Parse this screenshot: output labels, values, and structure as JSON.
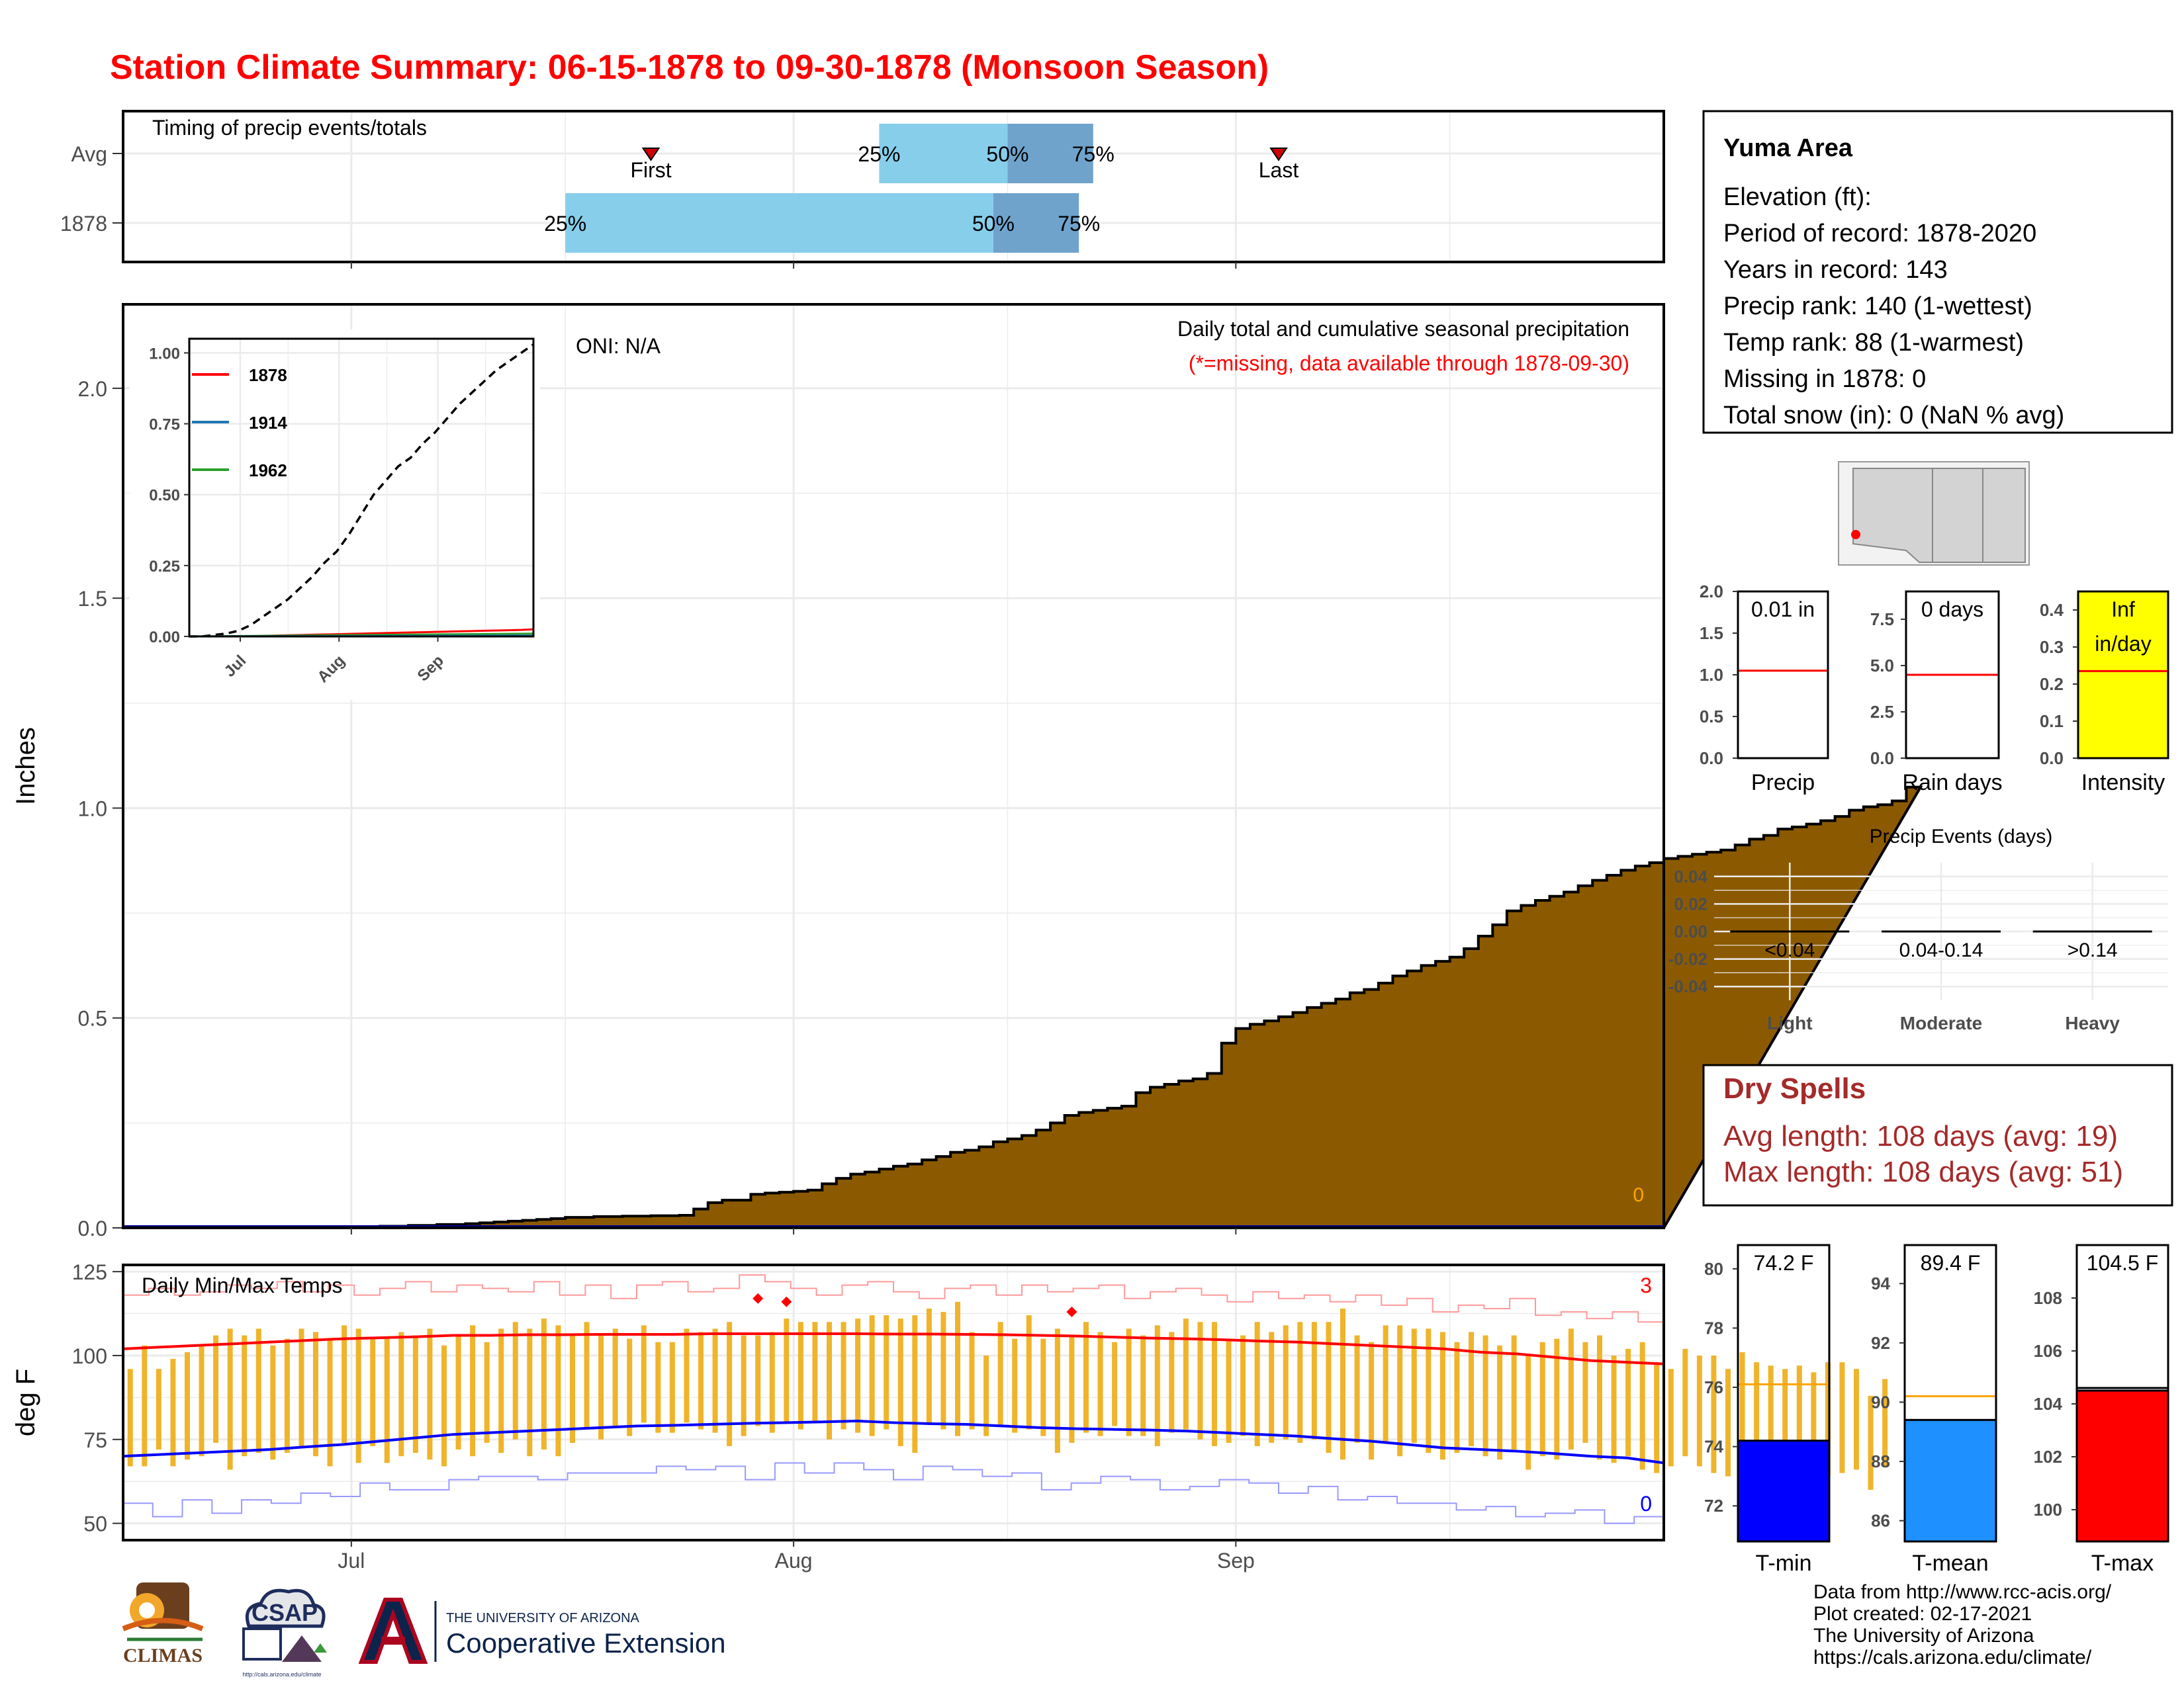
{
  "title": "Station Climate Summary: 06-15-1878 to 09-30-1878 (Monsoon Season)",
  "colors": {
    "title": "#ff0000",
    "precip_fill": "#8b5a00",
    "bar_light": "#87ceeb",
    "bar_mid": "#6fa3cc",
    "temp_bar": "#efb42b",
    "tmax_line": "#ff0000",
    "tmin_line": "#0000ff",
    "tmin_gauge": "#0000ff",
    "tmean_gauge": "#1e90ff",
    "tmax_gauge": "#ff0000",
    "intensity_bg": "#ffff00",
    "normal_line": "#ffa500",
    "dry_spell_text": "#a52a2a"
  },
  "chart_data": [
    {
      "type": "bar",
      "panel": "timing",
      "title": "Timing of precip events/totals",
      "categories": [
        "Avg",
        "1878"
      ],
      "xlim": [
        "1878-06-15",
        "1878-09-30"
      ],
      "x_ticks": [
        "1878-07-01",
        "1878-08-01",
        "1878-09-01"
      ],
      "series": [
        {
          "category": "Avg",
          "bands": [
            {
              "from": "1878-08-07",
              "to": "1878-08-16"
            },
            {
              "from": "1878-08-16",
              "to": "1878-08-22"
            }
          ],
          "labels": [
            {
              "text": "25%",
              "at": "1878-08-07"
            },
            {
              "text": "50%",
              "at": "1878-08-16"
            },
            {
              "text": "75%",
              "at": "1878-08-22"
            }
          ],
          "markers": [
            {
              "text": "First",
              "at": "1878-07-22"
            },
            {
              "text": "Last",
              "at": "1878-09-04"
            }
          ]
        },
        {
          "category": "1878",
          "bands": [
            {
              "from": "1878-07-16",
              "to": "1878-08-15"
            },
            {
              "from": "1878-08-15",
              "to": "1878-08-21"
            }
          ],
          "labels": [
            {
              "text": "25%",
              "at": "1878-07-16"
            },
            {
              "text": "50%",
              "at": "1878-08-15"
            },
            {
              "text": "75%",
              "at": "1878-08-21"
            }
          ],
          "markers": []
        }
      ]
    },
    {
      "type": "area",
      "panel": "precip",
      "title": "Daily total and cumulative seasonal precipitation",
      "subtitle": "(*=missing, data available through 1878-09-30)",
      "oni": "ONI: N/A",
      "ylabel": "Inches",
      "ylim": [
        0,
        2.2
      ],
      "yticks": [
        "0.0",
        "0.5",
        "1.0",
        "1.5",
        "2.0"
      ],
      "xlim": [
        "1878-06-15",
        "1878-09-30"
      ],
      "missing_count": "0",
      "start": "1878-06-15",
      "cumulative": [
        0,
        0,
        0,
        0,
        0,
        0,
        0,
        0,
        0,
        0,
        0,
        0,
        0,
        0,
        0,
        0,
        0.002,
        0.002,
        0.004,
        0.004,
        0.006,
        0.006,
        0.008,
        0.008,
        0.01,
        0.012,
        0.014,
        0.016,
        0.018,
        0.02,
        0.022,
        0.025,
        0.025,
        0.027,
        0.027,
        0.028,
        0.028,
        0.029,
        0.029,
        0.03,
        0.045,
        0.06,
        0.066,
        0.066,
        0.08,
        0.083,
        0.085,
        0.087,
        0.09,
        0.105,
        0.118,
        0.128,
        0.133,
        0.14,
        0.147,
        0.152,
        0.162,
        0.17,
        0.18,
        0.185,
        0.193,
        0.205,
        0.212,
        0.22,
        0.233,
        0.25,
        0.268,
        0.275,
        0.28,
        0.285,
        0.29,
        0.322,
        0.335,
        0.342,
        0.35,
        0.355,
        0.368,
        0.44,
        0.475,
        0.485,
        0.493,
        0.503,
        0.513,
        0.525,
        0.535,
        0.545,
        0.56,
        0.568,
        0.583,
        0.6,
        0.612,
        0.625,
        0.635,
        0.645,
        0.665,
        0.695,
        0.722,
        0.755,
        0.768,
        0.78,
        0.79,
        0.8,
        0.815,
        0.828,
        0.84,
        0.852,
        0.862,
        0.87,
        0.88,
        0.885,
        0.89,
        0.895,
        0.9,
        0.912,
        0.926,
        0.935,
        0.95,
        0.955,
        0.962,
        0.97,
        0.98,
        0.995,
        1.003,
        1.008,
        1.017,
        1.05
      ],
      "daily_line": 0.0
    },
    {
      "type": "line",
      "panel": "inset",
      "legend": [
        "1878",
        "1914",
        "1962"
      ],
      "legend_colors": [
        "#ff0000",
        "#1f77b4",
        "#2ca02c"
      ],
      "ylim": [
        0,
        1.05
      ],
      "yticks": [
        "0.00",
        "0.25",
        "0.50",
        "0.75",
        "1.00"
      ],
      "xlim": [
        "1878-06-15",
        "1878-09-30"
      ],
      "x_ticks": [
        "Jul",
        "Aug",
        "Sep"
      ],
      "dashed_normal": [
        0,
        0,
        0.005,
        0.01,
        0.02,
        0.04,
        0.07,
        0.1,
        0.13,
        0.17,
        0.21,
        0.26,
        0.3,
        0.36,
        0.43,
        0.5,
        0.55,
        0.6,
        0.63,
        0.68,
        0.72,
        0.77,
        0.82,
        0.86,
        0.9,
        0.94,
        0.97,
        1.0,
        1.03
      ],
      "series_1878": [
        0,
        0,
        0,
        0,
        0,
        0,
        0.002,
        0.003,
        0.004,
        0.005,
        0.006,
        0.007,
        0.008,
        0.009,
        0.01,
        0.011,
        0.012,
        0.013,
        0.014,
        0.015,
        0.016,
        0.017,
        0.018,
        0.019,
        0.02,
        0.021,
        0.022,
        0.023,
        0.025
      ]
    },
    {
      "type": "bar",
      "panel": "temps",
      "title": "Daily Min/Max Temps",
      "ylabel": "deg F",
      "ylim": [
        45,
        127
      ],
      "yticks": [
        "50",
        "75",
        "100",
        "125"
      ],
      "x_ticks": [
        "Jul",
        "Aug",
        "Sep"
      ],
      "record_high_count": "3",
      "record_low_count": "0",
      "start": "1878-06-15",
      "tmax": [
        96,
        103,
        96,
        99,
        101,
        103,
        106,
        108,
        106,
        108,
        103,
        105,
        108,
        107,
        105,
        109,
        108,
        105,
        105,
        107,
        106,
        108,
        103,
        106,
        109,
        104,
        108,
        110,
        108,
        111,
        109,
        106,
        110,
        106,
        108,
        105,
        109,
        104,
        104,
        108,
        107,
        108,
        110,
        106,
        106,
        107,
        111,
        110,
        110,
        110,
        110,
        111,
        112,
        112,
        111,
        112,
        114,
        113,
        116,
        107,
        100,
        110,
        105,
        112,
        105,
        108,
        106,
        110,
        107,
        104,
        108,
        106,
        109,
        107,
        111,
        110,
        110,
        105,
        106,
        110,
        107,
        109,
        110,
        110,
        110,
        114,
        106,
        104,
        109,
        109,
        108,
        108,
        107,
        104,
        107,
        106,
        103,
        106,
        100,
        104,
        105,
        108,
        104,
        106,
        100,
        102,
        104,
        98,
        96,
        102,
        100,
        100,
        96,
        101,
        98,
        97,
        96,
        97,
        95,
        98,
        98,
        96,
        88,
        93
      ],
      "tmin": [
        67,
        67,
        72,
        67,
        69,
        70,
        74,
        66,
        70,
        71,
        69,
        71,
        73,
        70,
        67,
        74,
        68,
        73,
        68,
        70,
        71,
        69,
        67,
        72,
        70,
        74,
        71,
        75,
        70,
        72,
        70,
        74,
        78,
        75,
        79,
        76,
        80,
        77,
        77,
        80,
        78,
        77,
        73,
        76,
        79,
        77,
        80,
        78,
        80,
        75,
        78,
        77,
        76,
        78,
        73,
        71,
        80,
        78,
        76,
        78,
        76,
        79,
        77,
        78,
        76,
        71,
        74,
        77,
        76,
        79,
        76,
        76,
        73,
        77,
        78,
        75,
        73,
        74,
        76,
        73,
        74,
        75,
        74,
        75,
        71,
        69,
        74,
        69,
        74,
        70,
        74,
        71,
        69,
        71,
        73,
        70,
        69,
        72,
        66,
        70,
        69,
        72,
        74,
        69,
        68,
        70,
        66,
        65,
        67,
        70,
        67,
        65,
        64,
        67,
        64,
        61,
        68,
        61,
        62,
        64,
        65,
        66,
        60,
        67
      ],
      "tmax_normal": [
        102,
        102.5,
        103,
        103.5,
        104,
        104.5,
        105,
        105.3,
        105.6,
        106,
        106,
        106.2,
        106.2,
        106.3,
        106.3,
        106.3,
        106.5,
        106.5,
        106.5,
        106.5,
        106.5,
        106.4,
        106.4,
        106.3,
        106.2,
        106,
        105.8,
        105.5,
        105.2,
        105,
        104.7,
        104.3,
        104,
        103.5,
        103,
        102.5,
        102,
        101,
        100.5,
        99.5,
        98.5,
        98,
        97.5
      ],
      "tmin_normal": [
        70,
        70.5,
        71,
        71.5,
        72,
        72.8,
        73.5,
        74.5,
        75.5,
        76.5,
        77,
        77.5,
        78,
        78.5,
        79,
        79.2,
        79.5,
        79.8,
        80,
        80.2,
        80.5,
        80,
        79.7,
        79.5,
        79,
        78.5,
        78.2,
        78,
        77.8,
        77.5,
        77,
        76.5,
        76,
        75.2,
        74.5,
        73.5,
        72.5,
        72,
        71.5,
        70.8,
        70,
        69.5,
        68
      ],
      "record_high": [
        118,
        120,
        118,
        119,
        121,
        120,
        122,
        119,
        121,
        118,
        120,
        122,
        119,
        121,
        120,
        119,
        122,
        118,
        121,
        117,
        121,
        122,
        119,
        120,
        124,
        122,
        120,
        118,
        121,
        122,
        119,
        117,
        120,
        121,
        118,
        121,
        119,
        120,
        121,
        117,
        119,
        120,
        118,
        116,
        119,
        117,
        118,
        116,
        118,
        115,
        117,
        113,
        115,
        114,
        117,
        112,
        113,
        111,
        113,
        110
      ],
      "record_low": [
        56,
        52,
        57,
        53,
        57,
        56,
        59,
        58,
        62,
        60,
        60,
        63,
        64,
        64,
        63,
        65,
        65,
        65,
        67,
        66,
        67,
        63,
        68,
        65,
        68,
        66,
        63,
        67,
        66,
        64,
        65,
        60,
        62,
        64,
        63,
        60,
        61,
        63,
        62,
        59,
        61,
        57,
        58,
        56,
        56,
        54,
        55,
        52,
        53,
        54,
        50,
        52
      ],
      "record_points": [
        {
          "date": "1878-07-29",
          "value": 117
        },
        {
          "date": "1878-07-31",
          "value": 116
        },
        {
          "date": "1878-08-20",
          "value": 113
        }
      ]
    },
    {
      "type": "bar",
      "panel": "gauge-precip",
      "label": "Precip",
      "value_text": "0.01 in",
      "ylim": [
        0,
        2.0
      ],
      "yticks": [
        "0.0",
        "0.5",
        "1.0",
        "1.5",
        "2.0"
      ],
      "value": 0.01,
      "normal": 1.05
    },
    {
      "type": "bar",
      "panel": "gauge-raindays",
      "label": "Rain days",
      "value_text": "0 days",
      "ylim": [
        0,
        9
      ],
      "yticks": [
        "0.0",
        "2.5",
        "5.0",
        "7.5"
      ],
      "value": 0,
      "normal": 4.5
    },
    {
      "type": "bar",
      "panel": "gauge-intensity",
      "label": "Intensity",
      "value_text": "Inf",
      "value_text2": "in/day",
      "ylim": [
        0,
        0.45
      ],
      "yticks": [
        "0.0",
        "0.1",
        "0.2",
        "0.3",
        "0.4"
      ],
      "value": 0.45,
      "normal": 0.235
    },
    {
      "type": "bar",
      "panel": "events",
      "title": "Precip Events (days)",
      "categories": [
        "Light",
        "Moderate",
        "Heavy"
      ],
      "bin_labels": [
        "<0.04",
        "0.04-0.14",
        ">0.14"
      ],
      "values": [
        0,
        0,
        0
      ],
      "ylim": [
        -0.05,
        0.05
      ],
      "yticks": [
        "-0.04",
        "-0.02",
        "0.00",
        "0.02",
        "0.04"
      ]
    },
    {
      "type": "bar",
      "panel": "gauge-tmin",
      "label": "T-min",
      "value_text": "74.2 F",
      "ylim": [
        70.8,
        80.8
      ],
      "yticks": [
        "72",
        "74",
        "76",
        "78",
        "80"
      ],
      "value": 74.2,
      "normal": 76.1
    },
    {
      "type": "bar",
      "panel": "gauge-tmean",
      "label": "T-mean",
      "value_text": "89.4 F",
      "ylim": [
        85.3,
        95.3
      ],
      "yticks": [
        "86",
        "88",
        "90",
        "92",
        "94"
      ],
      "value": 89.4,
      "normal": 90.2
    },
    {
      "type": "bar",
      "panel": "gauge-tmax",
      "label": "T-max",
      "value_text": "104.5 F",
      "ylim": [
        98.8,
        110
      ],
      "yticks": [
        "100",
        "102",
        "104",
        "106",
        "108"
      ],
      "value": 104.5,
      "normal": 104.6
    }
  ],
  "station": {
    "name": "Yuma Area",
    "lines": [
      "Elevation (ft):",
      "Period of record: 1878-2020",
      "Years in record: 143",
      "Precip rank: 140 (1-wettest)",
      "Temp rank: 88 (1-warmest)",
      "Missing in 1878: 0",
      "Total snow (in): 0 (NaN % avg)"
    ]
  },
  "dry_spells": {
    "title": "Dry Spells",
    "avg": "Avg length: 108 days (avg: 19)",
    "max": "Max length: 108 days (avg: 51)"
  },
  "month_labels": [
    "Jul",
    "Aug",
    "Sep"
  ],
  "logos": {
    "climas": "CLIMAS",
    "csap": "CSAP",
    "csap_url": "http://cals.arizona.edu/climate",
    "ua_line1": "THE UNIVERSITY OF ARIZONA",
    "ua_line2": "Cooperative Extension"
  },
  "footer": [
    "Data from http://www.rcc-acis.org/",
    "Plot created: 02-17-2021",
    "The University of Arizona",
    "https://cals.arizona.edu/climate/"
  ]
}
